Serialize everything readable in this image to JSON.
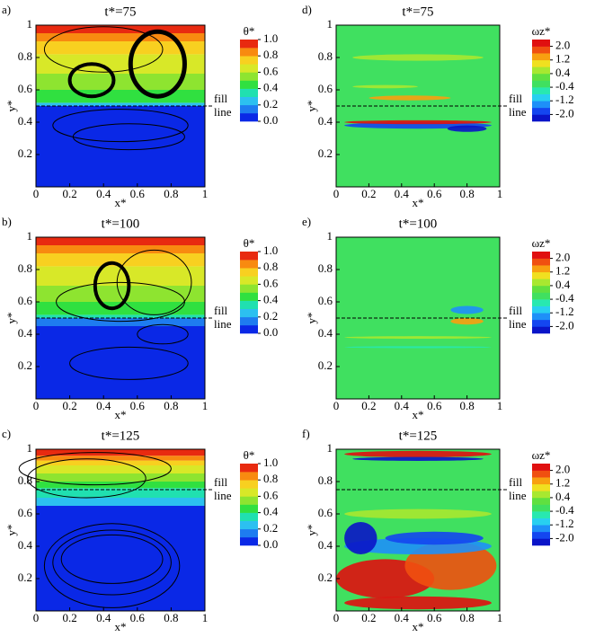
{
  "chart_data": [
    {
      "type": "contour",
      "panel": "a)",
      "title": "t*=75",
      "xlabel": "x*",
      "ylabel": "y*",
      "xlim": [
        0,
        1
      ],
      "ylim": [
        0,
        1
      ],
      "xticks": [
        0,
        0.2,
        0.4,
        0.6,
        0.8,
        1
      ],
      "yticks": [
        0.2,
        0.4,
        0.6,
        0.8,
        1
      ],
      "fill_line": 0.5,
      "annotation": [
        "fill",
        "line"
      ],
      "colorbar": {
        "label": "θ*",
        "clim": [
          0,
          1
        ],
        "ticks": [
          {
            "value": 1,
            "label": "1.0"
          },
          {
            "value": 0.8,
            "label": "0.8"
          },
          {
            "value": 0.6,
            "label": "0.6"
          },
          {
            "value": 0.4,
            "label": "0.4"
          },
          {
            "value": 0.2,
            "label": "0.2"
          },
          {
            "value": 0,
            "label": "0.0"
          }
        ],
        "colors": [
          "#0a28e6",
          "#1e7cf0",
          "#2cc0f0",
          "#20e0b0",
          "#30e040",
          "#8ee430",
          "#d8e828",
          "#f8d020",
          "#f88a10",
          "#e82a10"
        ]
      }
    },
    {
      "type": "contour",
      "panel": "b)",
      "title": "t*=100",
      "xlabel": "x*",
      "ylabel": "y*",
      "xlim": [
        0,
        1
      ],
      "ylim": [
        0,
        1
      ],
      "xticks": [
        0,
        0.2,
        0.4,
        0.6,
        0.8,
        1
      ],
      "yticks": [
        0.2,
        0.4,
        0.6,
        0.8,
        1
      ],
      "fill_line": 0.5,
      "annotation": [
        "fill",
        "line"
      ],
      "colorbar": {
        "label": "θ*",
        "clim": [
          0,
          1
        ],
        "ticks": [
          {
            "value": 1,
            "label": "1.0"
          },
          {
            "value": 0.8,
            "label": "0.8"
          },
          {
            "value": 0.6,
            "label": "0.6"
          },
          {
            "value": 0.4,
            "label": "0.4"
          },
          {
            "value": 0.2,
            "label": "0.2"
          },
          {
            "value": 0,
            "label": "0.0"
          }
        ],
        "colors": [
          "#0a28e6",
          "#1e7cf0",
          "#2cc0f0",
          "#20e0b0",
          "#30e040",
          "#8ee430",
          "#d8e828",
          "#f8d020",
          "#f88a10",
          "#e82a10"
        ]
      }
    },
    {
      "type": "contour",
      "panel": "c)",
      "title": "t*=125",
      "xlabel": "x*",
      "ylabel": "y*",
      "xlim": [
        0,
        1
      ],
      "ylim": [
        0,
        1
      ],
      "xticks": [
        0,
        0.2,
        0.4,
        0.6,
        0.8,
        1
      ],
      "yticks": [
        0.2,
        0.4,
        0.6,
        0.8,
        1
      ],
      "fill_line": 0.75,
      "annotation": [
        "fill",
        "line"
      ],
      "colorbar": {
        "label": "θ*",
        "clim": [
          0,
          1
        ],
        "ticks": [
          {
            "value": 1,
            "label": "1.0"
          },
          {
            "value": 0.8,
            "label": "0.8"
          },
          {
            "value": 0.6,
            "label": "0.6"
          },
          {
            "value": 0.4,
            "label": "0.4"
          },
          {
            "value": 0.2,
            "label": "0.2"
          },
          {
            "value": 0,
            "label": "0.0"
          }
        ],
        "colors": [
          "#0a28e6",
          "#1e7cf0",
          "#2cc0f0",
          "#20e0b0",
          "#30e040",
          "#8ee430",
          "#d8e828",
          "#f8d020",
          "#f88a10",
          "#e82a10"
        ]
      }
    },
    {
      "type": "contour",
      "panel": "d)",
      "title": "t*=75",
      "xlabel": "x*",
      "ylabel": "y*",
      "xlim": [
        0,
        1
      ],
      "ylim": [
        0,
        1
      ],
      "xticks": [
        0,
        0.2,
        0.4,
        0.6,
        0.8,
        1
      ],
      "yticks": [
        0.2,
        0.4,
        0.6,
        0.8,
        1
      ],
      "fill_line": 0.5,
      "annotation": [
        "fill",
        "line"
      ],
      "colorbar": {
        "label": "ωz*",
        "clim": [
          -2.4,
          2.4
        ],
        "ticks": [
          {
            "value": 2,
            "label": "2.0"
          },
          1.2,
          0.4,
          -0.4,
          -1.2,
          {
            "value": -2,
            "label": "-2.0"
          }
        ],
        "colors": [
          "#0a14c8",
          "#1446f0",
          "#1e90f8",
          "#28d0f0",
          "#28e8b0",
          "#40e060",
          "#60e040",
          "#a8e830",
          "#f0e020",
          "#f8a010",
          "#f05010",
          "#e01010"
        ]
      }
    },
    {
      "type": "contour",
      "panel": "e)",
      "title": "t*=100",
      "xlabel": "x*",
      "ylabel": "y*",
      "xlim": [
        0,
        1
      ],
      "ylim": [
        0,
        1
      ],
      "xticks": [
        0,
        0.2,
        0.4,
        0.6,
        0.8,
        1
      ],
      "yticks": [
        0.2,
        0.4,
        0.6,
        0.8,
        1
      ],
      "fill_line": 0.5,
      "annotation": [
        "fill",
        "line"
      ],
      "colorbar": {
        "label": "ωz*",
        "clim": [
          -2.4,
          2.4
        ],
        "ticks": [
          {
            "value": 2,
            "label": "2.0"
          },
          1.2,
          0.4,
          -0.4,
          -1.2,
          {
            "value": -2,
            "label": "-2.0"
          }
        ],
        "colors": [
          "#0a14c8",
          "#1446f0",
          "#1e90f8",
          "#28d0f0",
          "#28e8b0",
          "#40e060",
          "#60e040",
          "#a8e830",
          "#f0e020",
          "#f8a010",
          "#f05010",
          "#e01010"
        ]
      }
    },
    {
      "type": "contour",
      "panel": "f)",
      "title": "t*=125",
      "xlabel": "x*",
      "ylabel": "y*",
      "xlim": [
        0,
        1
      ],
      "ylim": [
        0,
        1
      ],
      "xticks": [
        0,
        0.2,
        0.4,
        0.6,
        0.8,
        1
      ],
      "yticks": [
        0.2,
        0.4,
        0.6,
        0.8,
        1
      ],
      "fill_line": 0.75,
      "annotation": [
        "fill",
        "line"
      ],
      "colorbar": {
        "label": "ωz*",
        "clim": [
          -2.4,
          2.4
        ],
        "ticks": [
          {
            "value": 2,
            "label": "2.0"
          },
          1.2,
          0.4,
          -0.4,
          -1.2,
          {
            "value": -2,
            "label": "-2.0"
          }
        ],
        "colors": [
          "#0a14c8",
          "#1446f0",
          "#1e90f8",
          "#28d0f0",
          "#28e8b0",
          "#40e060",
          "#60e040",
          "#a8e830",
          "#f0e020",
          "#f8a010",
          "#f05010",
          "#e01010"
        ]
      }
    }
  ]
}
